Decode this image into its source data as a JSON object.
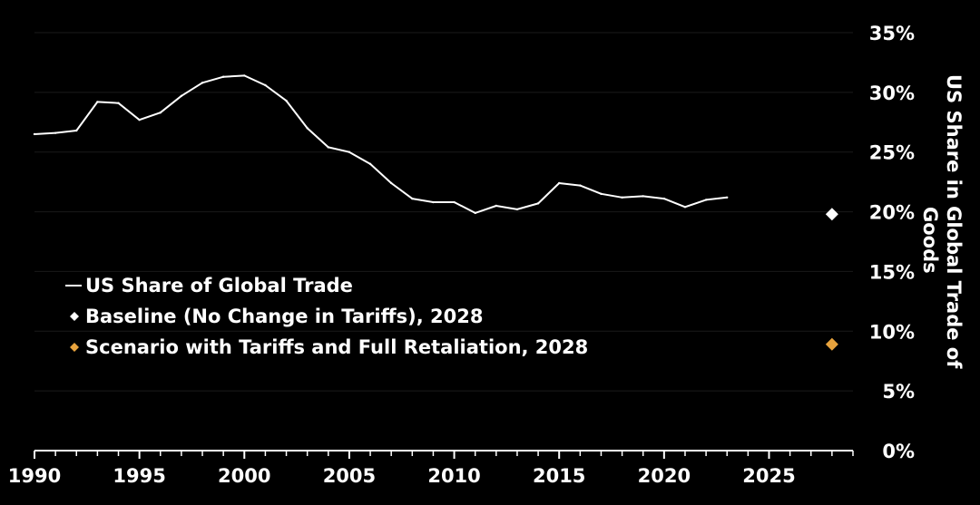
{
  "chart_data": {
    "type": "line",
    "title": "",
    "xlabel": "",
    "ylabel_lines": [
      "US Share in Global Trade of",
      "Goods"
    ],
    "xlim": [
      1990,
      2029
    ],
    "ylim": [
      0,
      35
    ],
    "x_ticks": [
      1990,
      1995,
      2000,
      2005,
      2010,
      2015,
      2020,
      2025
    ],
    "x_tick_labels": [
      "1990",
      "1995",
      "2000",
      "2005",
      "2010",
      "2015",
      "2020",
      "2025"
    ],
    "y_ticks": [
      0,
      5,
      10,
      15,
      20,
      25,
      30,
      35
    ],
    "y_tick_labels": [
      "0%",
      "5%",
      "10%",
      "15%",
      "20%",
      "25%",
      "30%",
      "35%"
    ],
    "grid": true,
    "y_axis_side": "right",
    "legend_position": "left",
    "series": [
      {
        "name": "US Share of Global Trade",
        "kind": "line",
        "color": "#ffffff",
        "x": [
          1990,
          1991,
          1992,
          1993,
          1994,
          1995,
          1996,
          1997,
          1998,
          1999,
          2000,
          2001,
          2002,
          2003,
          2004,
          2005,
          2006,
          2007,
          2008,
          2009,
          2010,
          2011,
          2012,
          2013,
          2014,
          2015,
          2016,
          2017,
          2018,
          2019,
          2020,
          2021,
          2022,
          2023
        ],
        "y": [
          26.5,
          26.6,
          26.8,
          29.2,
          29.1,
          27.7,
          28.3,
          29.7,
          30.8,
          31.3,
          31.4,
          30.6,
          29.3,
          27.0,
          25.4,
          25.0,
          24.0,
          22.4,
          21.1,
          20.8,
          20.8,
          19.9,
          20.5,
          20.2,
          20.7,
          22.4,
          22.2,
          21.5,
          21.2,
          21.3,
          21.1,
          20.4,
          21.0,
          21.2
        ]
      },
      {
        "name": "Baseline (No Change in Tariffs), 2028",
        "kind": "point",
        "color": "#ffffff",
        "x": [
          2028
        ],
        "y": [
          19.8
        ]
      },
      {
        "name": "Scenario with Tariffs and Full Retaliation, 2028",
        "kind": "point",
        "color": "#e8a33d",
        "x": [
          2028
        ],
        "y": [
          8.9
        ]
      }
    ]
  }
}
